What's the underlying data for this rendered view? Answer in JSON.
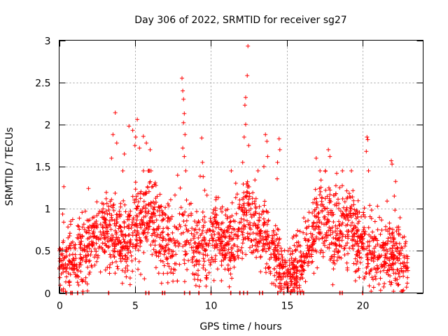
{
  "chart_data": {
    "type": "scatter",
    "title": "Day 306 of 2022, SRMTID for receiver sg27",
    "xlabel": "GPS time / hours",
    "ylabel": "SRMTID / TECUs",
    "xlim": [
      0,
      24
    ],
    "ylim": [
      0,
      3
    ],
    "xticks": [
      0,
      5,
      10,
      15,
      20
    ],
    "yticks": [
      0,
      0.5,
      1,
      1.5,
      2,
      2.5,
      3
    ],
    "grid": true,
    "marker": "+",
    "color": "#ff0000",
    "series": [
      {
        "name": "SRMTID",
        "generator": "mean profile + scatter (dense cloud approximated from figure)",
        "count": 2200,
        "seed": 306,
        "x_range": [
          0,
          23
        ],
        "profile_x": [
          0,
          0.5,
          1,
          1.5,
          2,
          2.5,
          3,
          3.5,
          4,
          4.5,
          5,
          5.5,
          6,
          6.5,
          7,
          7.5,
          8,
          8.5,
          9,
          9.5,
          10,
          10.5,
          11,
          11.5,
          12,
          12.5,
          13,
          13.5,
          14,
          14.5,
          15,
          15.5,
          16,
          16.5,
          17,
          17.5,
          18,
          18.5,
          19,
          19.5,
          20,
          20.5,
          21,
          21.5,
          22,
          22.5,
          23
        ],
        "profile_y": [
          0.38,
          0.35,
          0.38,
          0.45,
          0.55,
          0.62,
          0.7,
          0.68,
          0.62,
          0.6,
          0.72,
          0.85,
          0.95,
          0.75,
          0.55,
          0.6,
          0.68,
          0.65,
          0.55,
          0.52,
          0.65,
          0.72,
          0.58,
          0.62,
          0.85,
          0.95,
          0.8,
          0.72,
          0.5,
          0.32,
          0.22,
          0.25,
          0.35,
          0.55,
          0.78,
          0.85,
          0.72,
          0.7,
          0.78,
          0.72,
          0.58,
          0.48,
          0.42,
          0.45,
          0.5,
          0.45,
          0.3
        ],
        "spread": 0.22,
        "zero_points_x": [
          0.45,
          0.75,
          0.85,
          1.2,
          1.55,
          3.25,
          5.7,
          5.9,
          6.8,
          6.95,
          8.25,
          8.6,
          9.2,
          10.0,
          11.3,
          11.9,
          12.15,
          12.4,
          13.2,
          13.4,
          14.4,
          14.8,
          15.25,
          15.7,
          15.9,
          16.1,
          18.5,
          18.65,
          20.0
        ],
        "spikes": [
          {
            "x": 3.7,
            "y": 2.14
          },
          {
            "x": 3.55,
            "y": 1.88
          },
          {
            "x": 3.45,
            "y": 1.6
          },
          {
            "x": 3.8,
            "y": 1.78
          },
          {
            "x": 4.6,
            "y": 1.98
          },
          {
            "x": 4.85,
            "y": 1.93
          },
          {
            "x": 5.0,
            "y": 1.75
          },
          {
            "x": 5.15,
            "y": 2.06
          },
          {
            "x": 5.05,
            "y": 1.85
          },
          {
            "x": 5.3,
            "y": 1.72
          },
          {
            "x": 5.55,
            "y": 1.86
          },
          {
            "x": 5.75,
            "y": 1.78
          },
          {
            "x": 6.0,
            "y": 1.7
          },
          {
            "x": 4.3,
            "y": 1.65
          },
          {
            "x": 4.2,
            "y": 1.45
          },
          {
            "x": 8.1,
            "y": 2.55
          },
          {
            "x": 8.15,
            "y": 2.4
          },
          {
            "x": 8.2,
            "y": 2.3
          },
          {
            "x": 8.25,
            "y": 2.13
          },
          {
            "x": 8.2,
            "y": 2.02
          },
          {
            "x": 8.3,
            "y": 1.88
          },
          {
            "x": 8.15,
            "y": 1.72
          },
          {
            "x": 8.25,
            "y": 1.62
          },
          {
            "x": 8.35,
            "y": 1.45
          },
          {
            "x": 9.4,
            "y": 1.84
          },
          {
            "x": 9.45,
            "y": 1.55
          },
          {
            "x": 9.5,
            "y": 1.38
          },
          {
            "x": 12.45,
            "y": 2.93
          },
          {
            "x": 12.4,
            "y": 2.58
          },
          {
            "x": 12.3,
            "y": 2.32
          },
          {
            "x": 12.25,
            "y": 2.23
          },
          {
            "x": 12.3,
            "y": 2.0
          },
          {
            "x": 12.2,
            "y": 1.85
          },
          {
            "x": 12.5,
            "y": 1.75
          },
          {
            "x": 12.1,
            "y": 1.55
          },
          {
            "x": 13.6,
            "y": 1.88
          },
          {
            "x": 13.7,
            "y": 1.8
          },
          {
            "x": 13.75,
            "y": 1.62
          },
          {
            "x": 13.5,
            "y": 1.5
          },
          {
            "x": 14.5,
            "y": 1.83
          },
          {
            "x": 14.55,
            "y": 1.7
          },
          {
            "x": 14.4,
            "y": 1.55
          },
          {
            "x": 16.95,
            "y": 1.6
          },
          {
            "x": 17.2,
            "y": 1.45
          },
          {
            "x": 17.75,
            "y": 1.7
          },
          {
            "x": 17.85,
            "y": 1.62
          },
          {
            "x": 18.3,
            "y": 1.42
          },
          {
            "x": 18.5,
            "y": 1.25
          },
          {
            "x": 20.3,
            "y": 1.85
          },
          {
            "x": 20.35,
            "y": 1.82
          },
          {
            "x": 20.25,
            "y": 1.68
          },
          {
            "x": 20.4,
            "y": 1.45
          },
          {
            "x": 21.9,
            "y": 1.57
          },
          {
            "x": 21.95,
            "y": 1.53
          },
          {
            "x": 22.1,
            "y": 1.15
          }
        ]
      }
    ]
  }
}
